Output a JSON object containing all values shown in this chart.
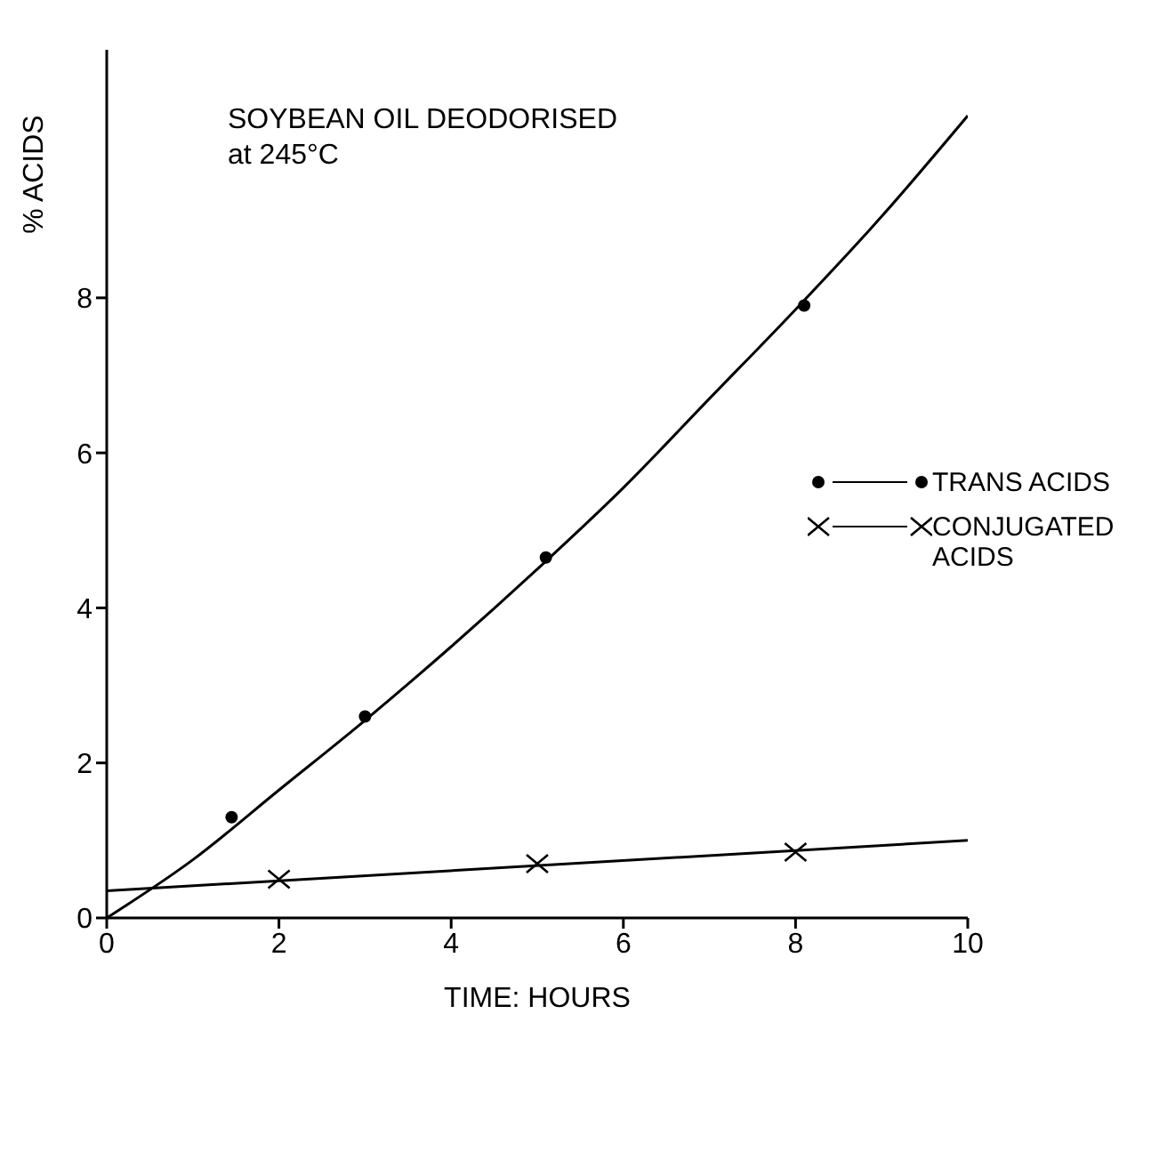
{
  "chart_data": {
    "type": "scatter",
    "title": "SOYBEAN OIL DEODORISED",
    "subtitle": "at 245°C",
    "xlabel": "TIME: HOURS",
    "ylabel": "% ACIDS",
    "xlim": [
      0,
      10
    ],
    "xticks": [
      0,
      2,
      4,
      6,
      8,
      10
    ],
    "ylim": [
      0,
      11.2
    ],
    "yticks": [
      0,
      2,
      4,
      6,
      8
    ],
    "grid": false,
    "legend": "right",
    "series": [
      {
        "name": "TRANS ACIDS",
        "marker": "circle",
        "color": "#000000",
        "x": [
          1.45,
          3,
          5.1,
          8.1
        ],
        "values": [
          1.3,
          2.6,
          4.65,
          7.9
        ]
      },
      {
        "name": "CONJUGATED ACIDS",
        "marker": "cross",
        "color": "#000000",
        "x": [
          2,
          5,
          8
        ],
        "values": [
          0.5,
          0.7,
          0.85
        ]
      },
      {
        "type": "line",
        "marker": "none",
        "line_style": "solid",
        "color": "#000000",
        "x": [
          0,
          1,
          2,
          3,
          4,
          5,
          6,
          7,
          8,
          9,
          10
        ],
        "values": [
          0,
          0.75,
          1.65,
          2.55,
          3.5,
          4.5,
          5.55,
          6.7,
          7.85,
          9.05,
          10.35
        ]
      },
      {
        "type": "line",
        "marker": "none",
        "line_style": "solid",
        "color": "#000000",
        "x": [
          0,
          10
        ],
        "values": [
          0.35,
          1.0
        ]
      }
    ]
  }
}
